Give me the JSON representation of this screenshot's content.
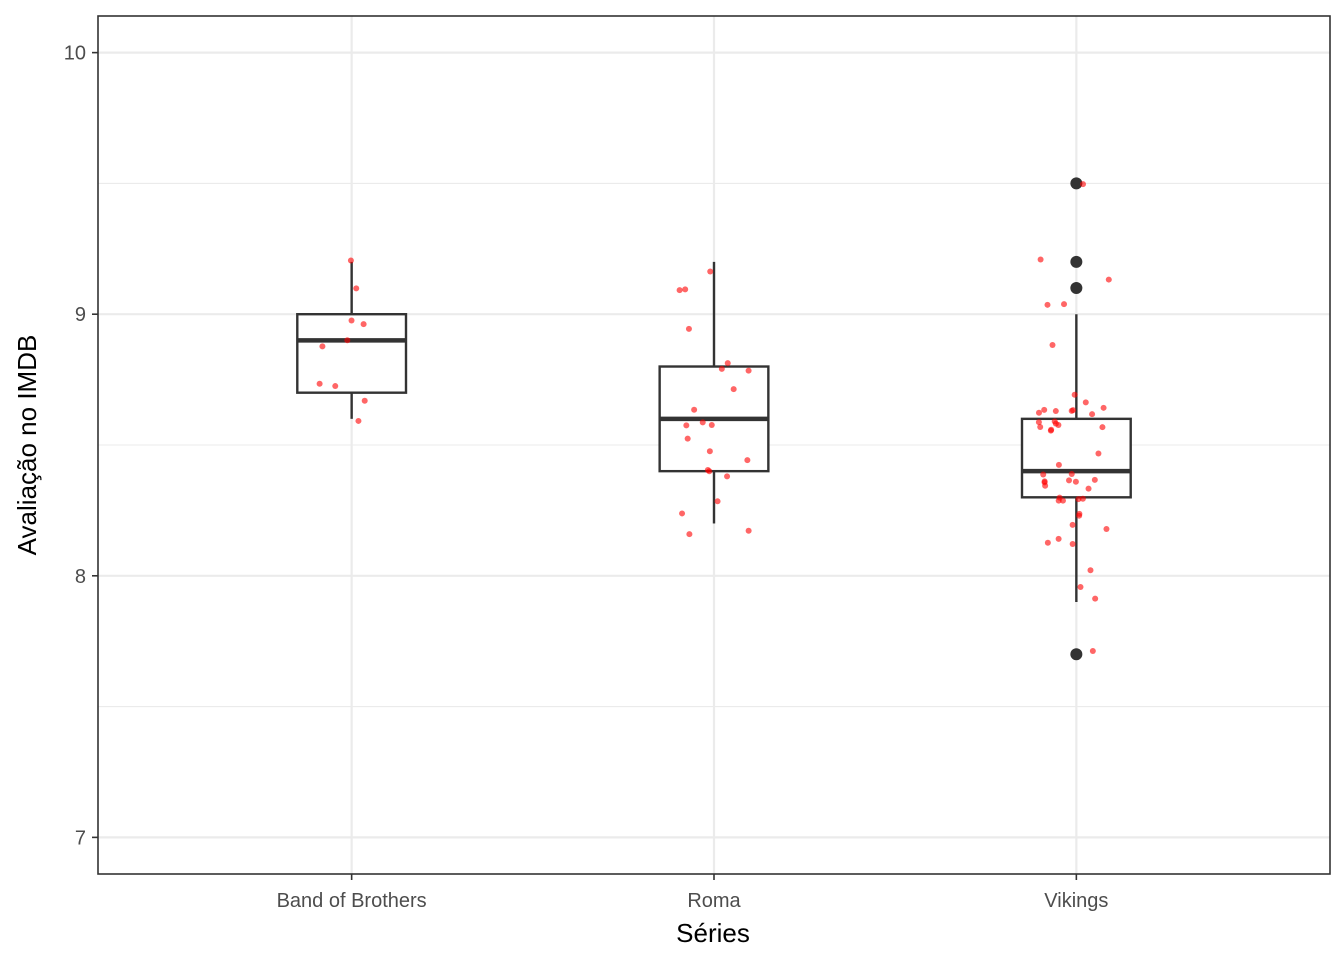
{
  "chart_data": {
    "type": "box",
    "xlabel": "Séries",
    "ylabel": "Avaliação no IMDB",
    "ylim": [
      6.86,
      10.14
    ],
    "yticks": [
      7,
      8,
      9,
      10
    ],
    "grid": true,
    "categories": [
      "Band of Brothers",
      "Roma",
      "Vikings"
    ],
    "colors": {
      "box": "#333333",
      "points": "#ff0000",
      "outliers": "#333333",
      "grid": "#ebebeb",
      "panel_border": "#333333"
    },
    "boxes": [
      {
        "category": "Band of Brothers",
        "min": 8.6,
        "q1": 8.7,
        "median": 8.9,
        "q3": 9.0,
        "max": 9.2,
        "outliers": []
      },
      {
        "category": "Roma",
        "min": 8.2,
        "q1": 8.4,
        "median": 8.6,
        "q3": 8.8,
        "max": 9.2,
        "outliers": []
      },
      {
        "category": "Vikings",
        "min": 7.9,
        "q1": 8.3,
        "median": 8.4,
        "q3": 8.6,
        "max": 9.0,
        "outliers": [
          9.5,
          9.2,
          9.1,
          7.7
        ]
      }
    ],
    "points": [
      {
        "category": "Band of Brothers",
        "values": [
          9.2,
          8.9,
          8.9,
          8.7,
          8.6,
          8.7,
          9.0,
          9.0,
          8.7,
          9.1
        ]
      },
      {
        "category": "Roma",
        "values": [
          8.2,
          8.4,
          9.1,
          8.2,
          8.4,
          8.4,
          8.9,
          8.5,
          8.3,
          8.5,
          8.6,
          8.2,
          8.6,
          8.6,
          8.8,
          8.7,
          8.6,
          9.2,
          9.1,
          8.8,
          8.8,
          8.4
        ]
      },
      {
        "category": "Vikings",
        "values": [
          8.6,
          8.2,
          8.6,
          8.4,
          8.4,
          8.6,
          9.1,
          7.9,
          8.0,
          8.3,
          8.6,
          8.0,
          8.1,
          8.6,
          8.3,
          8.3,
          8.6,
          9.5,
          8.1,
          8.2,
          8.6,
          8.6,
          8.3,
          8.6,
          8.6,
          8.4,
          8.2,
          8.6,
          8.4,
          8.3,
          8.4,
          8.6,
          8.5,
          8.6,
          8.7,
          8.4,
          8.7,
          8.6,
          8.1,
          9.0,
          7.7,
          8.3,
          8.6,
          8.4,
          8.9,
          9.2,
          8.4,
          8.2,
          8.3,
          9.0
        ]
      }
    ]
  }
}
